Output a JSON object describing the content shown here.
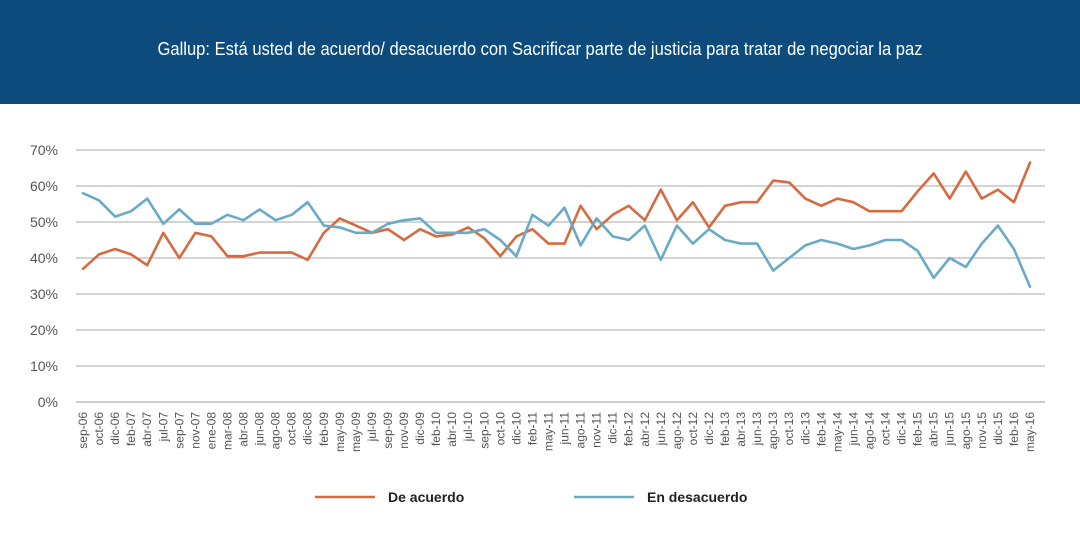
{
  "header": {
    "title": "Gallup: Está usted de acuerdo/ desacuerdo con Sacrificar parte de justicia para tratar de negociar la paz"
  },
  "chart_data": {
    "type": "line",
    "title": "Gallup: Está usted de acuerdo/ desacuerdo con Sacrificar parte de justicia para tratar de negociar la paz",
    "xlabel": "",
    "ylabel": "",
    "ylim": [
      0,
      70
    ],
    "yticks": [
      "0%",
      "10%",
      "20%",
      "30%",
      "40%",
      "50%",
      "60%",
      "70%"
    ],
    "grid": true,
    "legend_position": "bottom",
    "x": [
      "sep-06",
      "oct-06",
      "dic-06",
      "feb-07",
      "abr-07",
      "jul-07",
      "sep-07",
      "nov-07",
      "ene-08",
      "mar-08",
      "abr-08",
      "jun-08",
      "ago-08",
      "oct-08",
      "dic-08",
      "feb-09",
      "may-09",
      "may-09",
      "jul-09",
      "sep-09",
      "nov-09",
      "dic-09",
      "feb-10",
      "abr-10",
      "jul-10",
      "sep-10",
      "oct-10",
      "dic-10",
      "feb-11",
      "may-11",
      "jun-11",
      "ago-11",
      "nov-11",
      "dic-11",
      "feb-12",
      "abr-12",
      "jun-12",
      "ago-12",
      "oct-12",
      "dic-12",
      "feb-13",
      "abr-13",
      "jun-13",
      "ago-13",
      "oct-13",
      "dic-13",
      "feb-14",
      "may-14",
      "jun-14",
      "ago-14",
      "oct-14",
      "dic-14",
      "feb-15",
      "abr-15",
      "jun-15",
      "ago-15",
      "nov-15",
      "dic-15",
      "feb-16",
      "may-16"
    ],
    "series": [
      {
        "name": "De acuerdo",
        "color": "#d66b3f",
        "values": [
          37,
          41,
          42.5,
          41,
          38,
          47,
          40,
          47,
          46,
          40.5,
          40.5,
          41.5,
          41.5,
          41.5,
          39.5,
          47,
          51,
          49,
          47,
          48,
          45,
          48,
          46,
          46.5,
          48.5,
          45.5,
          40.5,
          46,
          48,
          44,
          44,
          54.5,
          48,
          52,
          54.5,
          50.5,
          59,
          50.5,
          55.5,
          48.5,
          54.5,
          55.5,
          55.5,
          61.5,
          61,
          56.5,
          54.5,
          56.5,
          55.5,
          53,
          53,
          53,
          58.5,
          63.5,
          56.5,
          64,
          56.5,
          59,
          55.5,
          66.5
        ]
      },
      {
        "name": "En desacuerdo",
        "color": "#6aaac6",
        "values": [
          58,
          56,
          51.5,
          53,
          56.5,
          49.5,
          53.5,
          49.5,
          49.5,
          52,
          50.5,
          53.5,
          50.5,
          52,
          55.5,
          49,
          48.5,
          47,
          47,
          49.5,
          50.5,
          51,
          47,
          47,
          47,
          48,
          45,
          40.5,
          52,
          49,
          54,
          43.5,
          51,
          46,
          45,
          49,
          39.5,
          49,
          44,
          48,
          45,
          44,
          44,
          36.5,
          40,
          43.5,
          45,
          44,
          42.5,
          43.5,
          45,
          45,
          42,
          34.5,
          40,
          37.5,
          44,
          49,
          42.5,
          32
        ]
      }
    ]
  }
}
